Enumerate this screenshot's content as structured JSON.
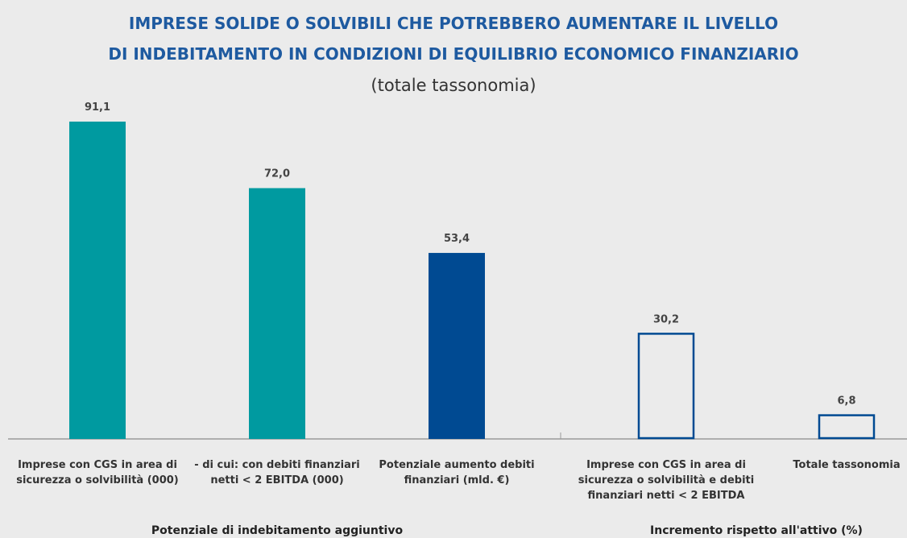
{
  "chart_data": {
    "type": "bar",
    "title": [
      "IMPRESE SOLIDE O SOLVIBILI CHE POTREBBERO AUMENTARE IL LIVELLO",
      "DI INDEBITAMENTO IN CONDIZIONI DI EQUILIBRIO ECONOMICO FINANZIARIO"
    ],
    "subtitle": "(totale tassonomia)",
    "categories": [
      "Imprese con CGS in area di sicurezza o solvibilità (000)",
      "- di cui: con debiti finanziari netti < 2 EBITDA (000)",
      "Potenziale aumento debiti finanziari (mld. €)",
      "Imprese con CGS in area di sicurezza o solvibilità e debiti finanziari netti < 2 EBITDA",
      "Totale tassonomia"
    ],
    "values": [
      91.1,
      72.0,
      53.4,
      30.2,
      6.8
    ],
    "value_labels": [
      "91,1",
      "72,0",
      "53,4",
      "30,2",
      "6,8"
    ],
    "colors": [
      "#009aa0",
      "#009aa0",
      "#004a92",
      "#004a92",
      "#004a92"
    ],
    "bar_styles": [
      "filled",
      "filled",
      "filled",
      "outline",
      "outline"
    ],
    "groups": [
      {
        "label": "Potenziale di indebitamento aggiuntivo",
        "size": 3
      },
      {
        "label": "Incremento rispetto all'attivo (%)",
        "size": 2
      }
    ]
  }
}
